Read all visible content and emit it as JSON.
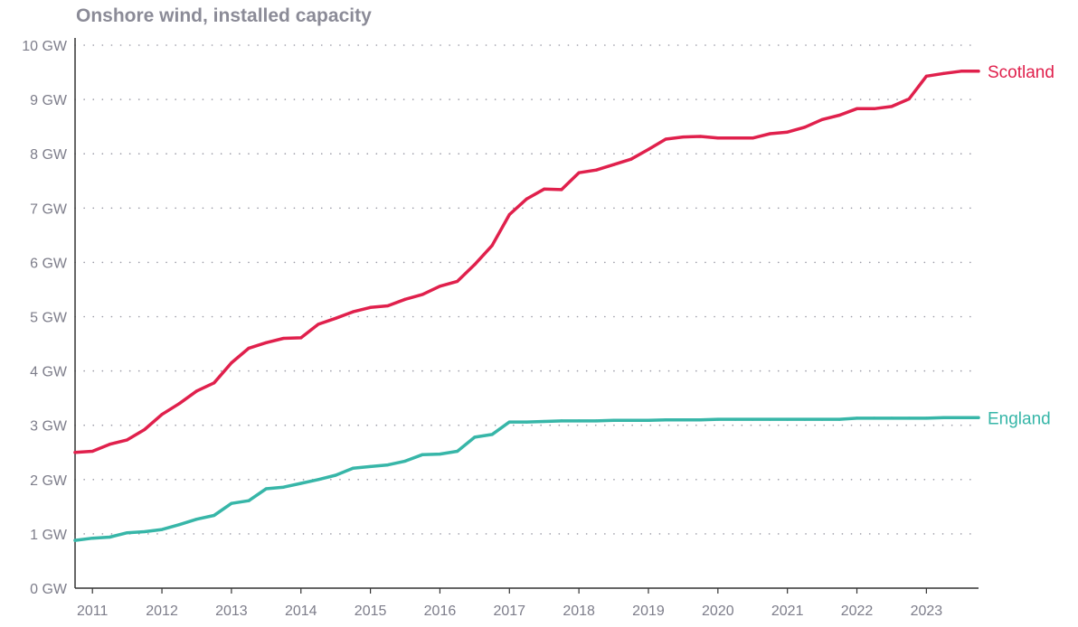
{
  "chart_data": {
    "type": "line",
    "title": "Onshore wind, installed capacity",
    "xlabel": "",
    "ylabel": "",
    "x_range": [
      2010.75,
      2023.75
    ],
    "ylim": [
      0,
      10
    ],
    "y_ticks": [
      0,
      1,
      2,
      3,
      4,
      5,
      6,
      7,
      8,
      9,
      10
    ],
    "y_tick_labels": [
      "0 GW",
      "1 GW",
      "2 GW",
      "3 GW",
      "4 GW",
      "5 GW",
      "6 GW",
      "7 GW",
      "8 GW",
      "9 GW",
      "10 GW"
    ],
    "x_ticks": [
      2011,
      2012,
      2013,
      2014,
      2015,
      2016,
      2017,
      2018,
      2019,
      2020,
      2021,
      2022,
      2023
    ],
    "x_tick_labels": [
      "2011",
      "2012",
      "2013",
      "2014",
      "2015",
      "2016",
      "2017",
      "2018",
      "2019",
      "2020",
      "2021",
      "2022",
      "2023"
    ],
    "grid": true,
    "grid_style": "dotted horizontal",
    "legend": "direct labels at right end of lines",
    "series": [
      {
        "name": "Scotland",
        "color": "#e0204c",
        "x": [
          2010.75,
          2011.0,
          2011.25,
          2011.5,
          2011.75,
          2012.0,
          2012.25,
          2012.5,
          2012.75,
          2013.0,
          2013.25,
          2013.5,
          2013.75,
          2014.0,
          2014.25,
          2014.5,
          2014.75,
          2015.0,
          2015.25,
          2015.5,
          2015.75,
          2016.0,
          2016.25,
          2016.5,
          2016.75,
          2017.0,
          2017.25,
          2017.5,
          2017.75,
          2018.0,
          2018.25,
          2018.5,
          2018.75,
          2019.0,
          2019.25,
          2019.5,
          2019.75,
          2020.0,
          2020.25,
          2020.5,
          2020.75,
          2021.0,
          2021.25,
          2021.5,
          2021.75,
          2022.0,
          2022.25,
          2022.5,
          2022.75,
          2023.0,
          2023.25,
          2023.5,
          2023.75
        ],
        "y": [
          2.5,
          2.52,
          2.65,
          2.73,
          2.92,
          3.2,
          3.4,
          3.63,
          3.78,
          4.15,
          4.42,
          4.52,
          4.6,
          4.61,
          4.86,
          4.97,
          5.09,
          5.17,
          5.2,
          5.32,
          5.41,
          5.56,
          5.65,
          5.96,
          6.31,
          6.88,
          7.17,
          7.35,
          7.34,
          7.65,
          7.7,
          7.8,
          7.9,
          8.08,
          8.27,
          8.31,
          8.32,
          8.29,
          8.29,
          8.29,
          8.37,
          8.4,
          8.49,
          8.63,
          8.71,
          8.83,
          8.83,
          8.87,
          9.01,
          9.43,
          9.48,
          9.52,
          9.52
        ]
      },
      {
        "name": "England",
        "color": "#37b6a8",
        "x": [
          2010.75,
          2011.0,
          2011.25,
          2011.5,
          2011.75,
          2012.0,
          2012.25,
          2012.5,
          2012.75,
          2013.0,
          2013.25,
          2013.5,
          2013.75,
          2014.0,
          2014.25,
          2014.5,
          2014.75,
          2015.0,
          2015.25,
          2015.5,
          2015.75,
          2016.0,
          2016.25,
          2016.5,
          2016.75,
          2017.0,
          2017.25,
          2017.5,
          2017.75,
          2018.0,
          2018.25,
          2018.5,
          2018.75,
          2019.0,
          2019.25,
          2019.5,
          2019.75,
          2020.0,
          2020.25,
          2020.5,
          2020.75,
          2021.0,
          2021.25,
          2021.5,
          2021.75,
          2022.0,
          2022.25,
          2022.5,
          2022.75,
          2023.0,
          2023.25,
          2023.5,
          2023.75
        ],
        "y": [
          0.88,
          0.92,
          0.94,
          1.02,
          1.04,
          1.08,
          1.17,
          1.27,
          1.34,
          1.56,
          1.61,
          1.83,
          1.86,
          1.93,
          2.0,
          2.08,
          2.21,
          2.24,
          2.27,
          2.34,
          2.46,
          2.47,
          2.52,
          2.78,
          2.83,
          3.06,
          3.06,
          3.07,
          3.08,
          3.08,
          3.08,
          3.09,
          3.09,
          3.09,
          3.1,
          3.1,
          3.1,
          3.11,
          3.11,
          3.11,
          3.11,
          3.11,
          3.11,
          3.11,
          3.11,
          3.13,
          3.13,
          3.13,
          3.13,
          3.13,
          3.14,
          3.14,
          3.14
        ]
      }
    ]
  }
}
